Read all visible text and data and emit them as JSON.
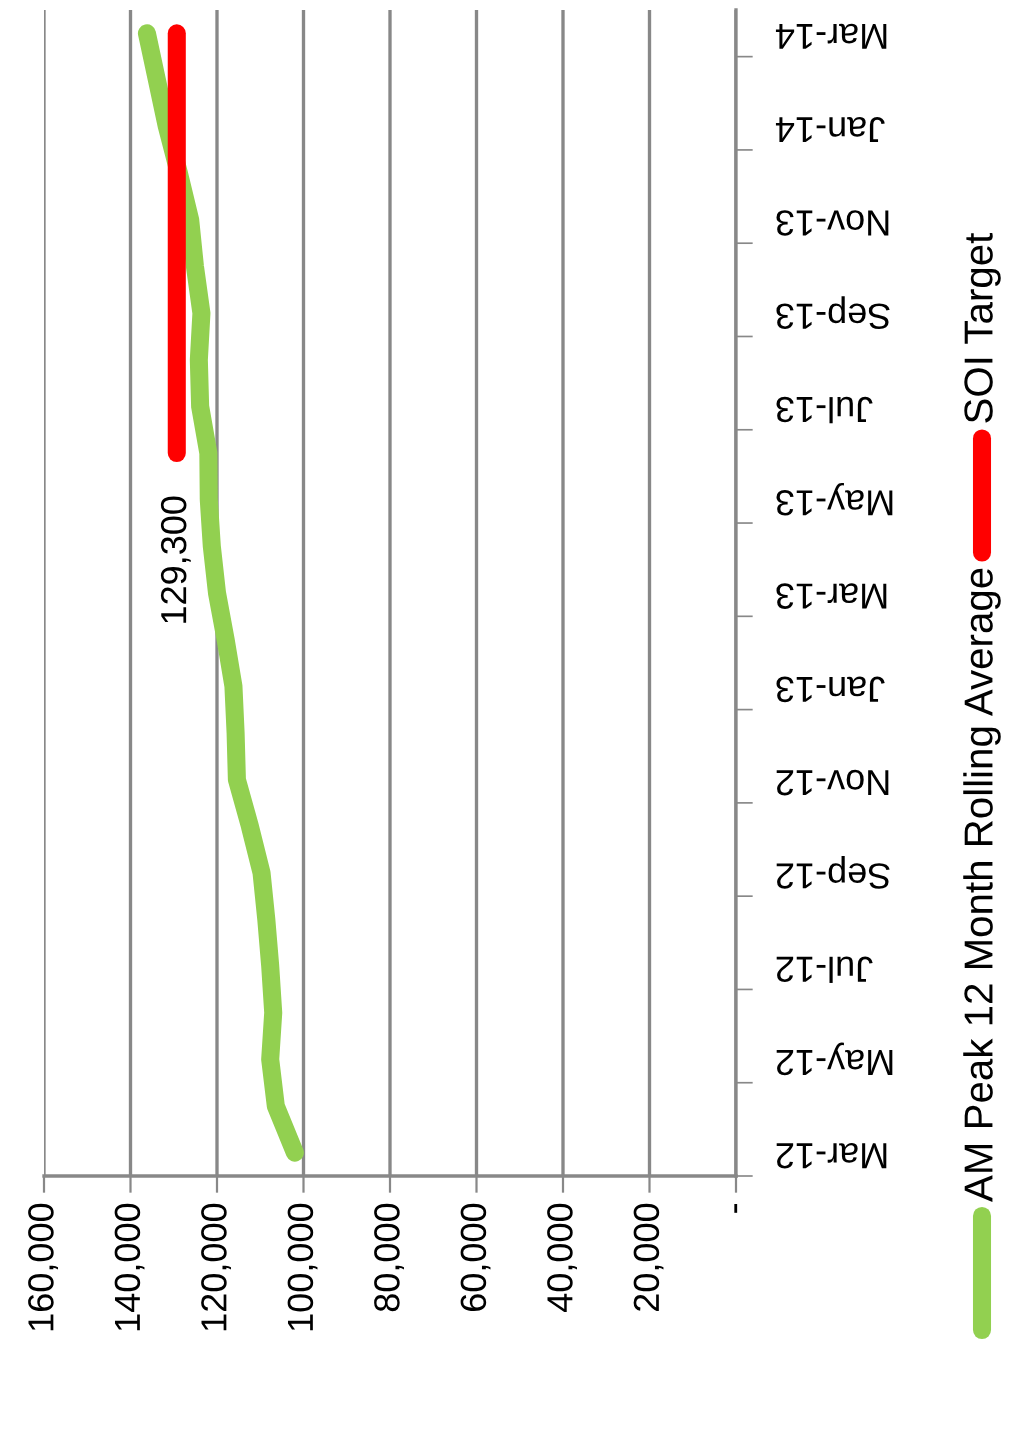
{
  "chart_data": {
    "type": "line",
    "orientation": "horizontal",
    "categories": [
      "Mar-14",
      null,
      "Jan-14",
      null,
      "Nov-13",
      null,
      "Sep-13",
      null,
      "Jul-13",
      null,
      "May-13",
      null,
      "Mar-13",
      null,
      "Jan-13",
      null,
      "Nov-12",
      null,
      "Sep-12",
      null,
      "Jul-12",
      null,
      "May-12",
      null,
      "Mar-12"
    ],
    "series": [
      {
        "name": "AM Peak 12 Month Rolling Average",
        "color": "#92d050",
        "values": [
          136200,
          133900,
          131600,
          128800,
          126200,
          125100,
          123600,
          124200,
          123900,
          122000,
          121900,
          121200,
          120000,
          118000,
          116200,
          115700,
          115400,
          112400,
          109700,
          108600,
          107700,
          107000,
          107700,
          106400,
          102000
        ]
      },
      {
        "name": "SOI Target",
        "color": "#ff0000",
        "values": [
          129300,
          129300,
          129300,
          129300,
          129300,
          129300,
          129300,
          129300,
          129300,
          129300,
          null,
          null,
          null,
          null,
          null,
          null,
          null,
          null,
          null,
          null,
          null,
          null,
          null,
          null,
          null
        ],
        "value_labels": [
          null,
          null,
          null,
          null,
          null,
          null,
          null,
          null,
          null,
          "129,300",
          null,
          null,
          null,
          null,
          null,
          null,
          null,
          null,
          null,
          null,
          null,
          null,
          null,
          null,
          null
        ]
      }
    ],
    "xlim": [
      160000,
      0
    ],
    "xticks": [
      {
        "value": 0,
        "label": "-"
      },
      {
        "value": 20000,
        "label": "20,000"
      },
      {
        "value": 40000,
        "label": "40,000"
      },
      {
        "value": 60000,
        "label": "60,000"
      },
      {
        "value": 80000,
        "label": "80,000"
      },
      {
        "value": 100000,
        "label": "100,000"
      },
      {
        "value": 120000,
        "label": "120,000"
      },
      {
        "value": 140000,
        "label": "140,000"
      },
      {
        "value": 160000,
        "label": "160,000"
      }
    ],
    "grid": "x",
    "legend": "right",
    "marker": "none",
    "line_style": "solid"
  }
}
